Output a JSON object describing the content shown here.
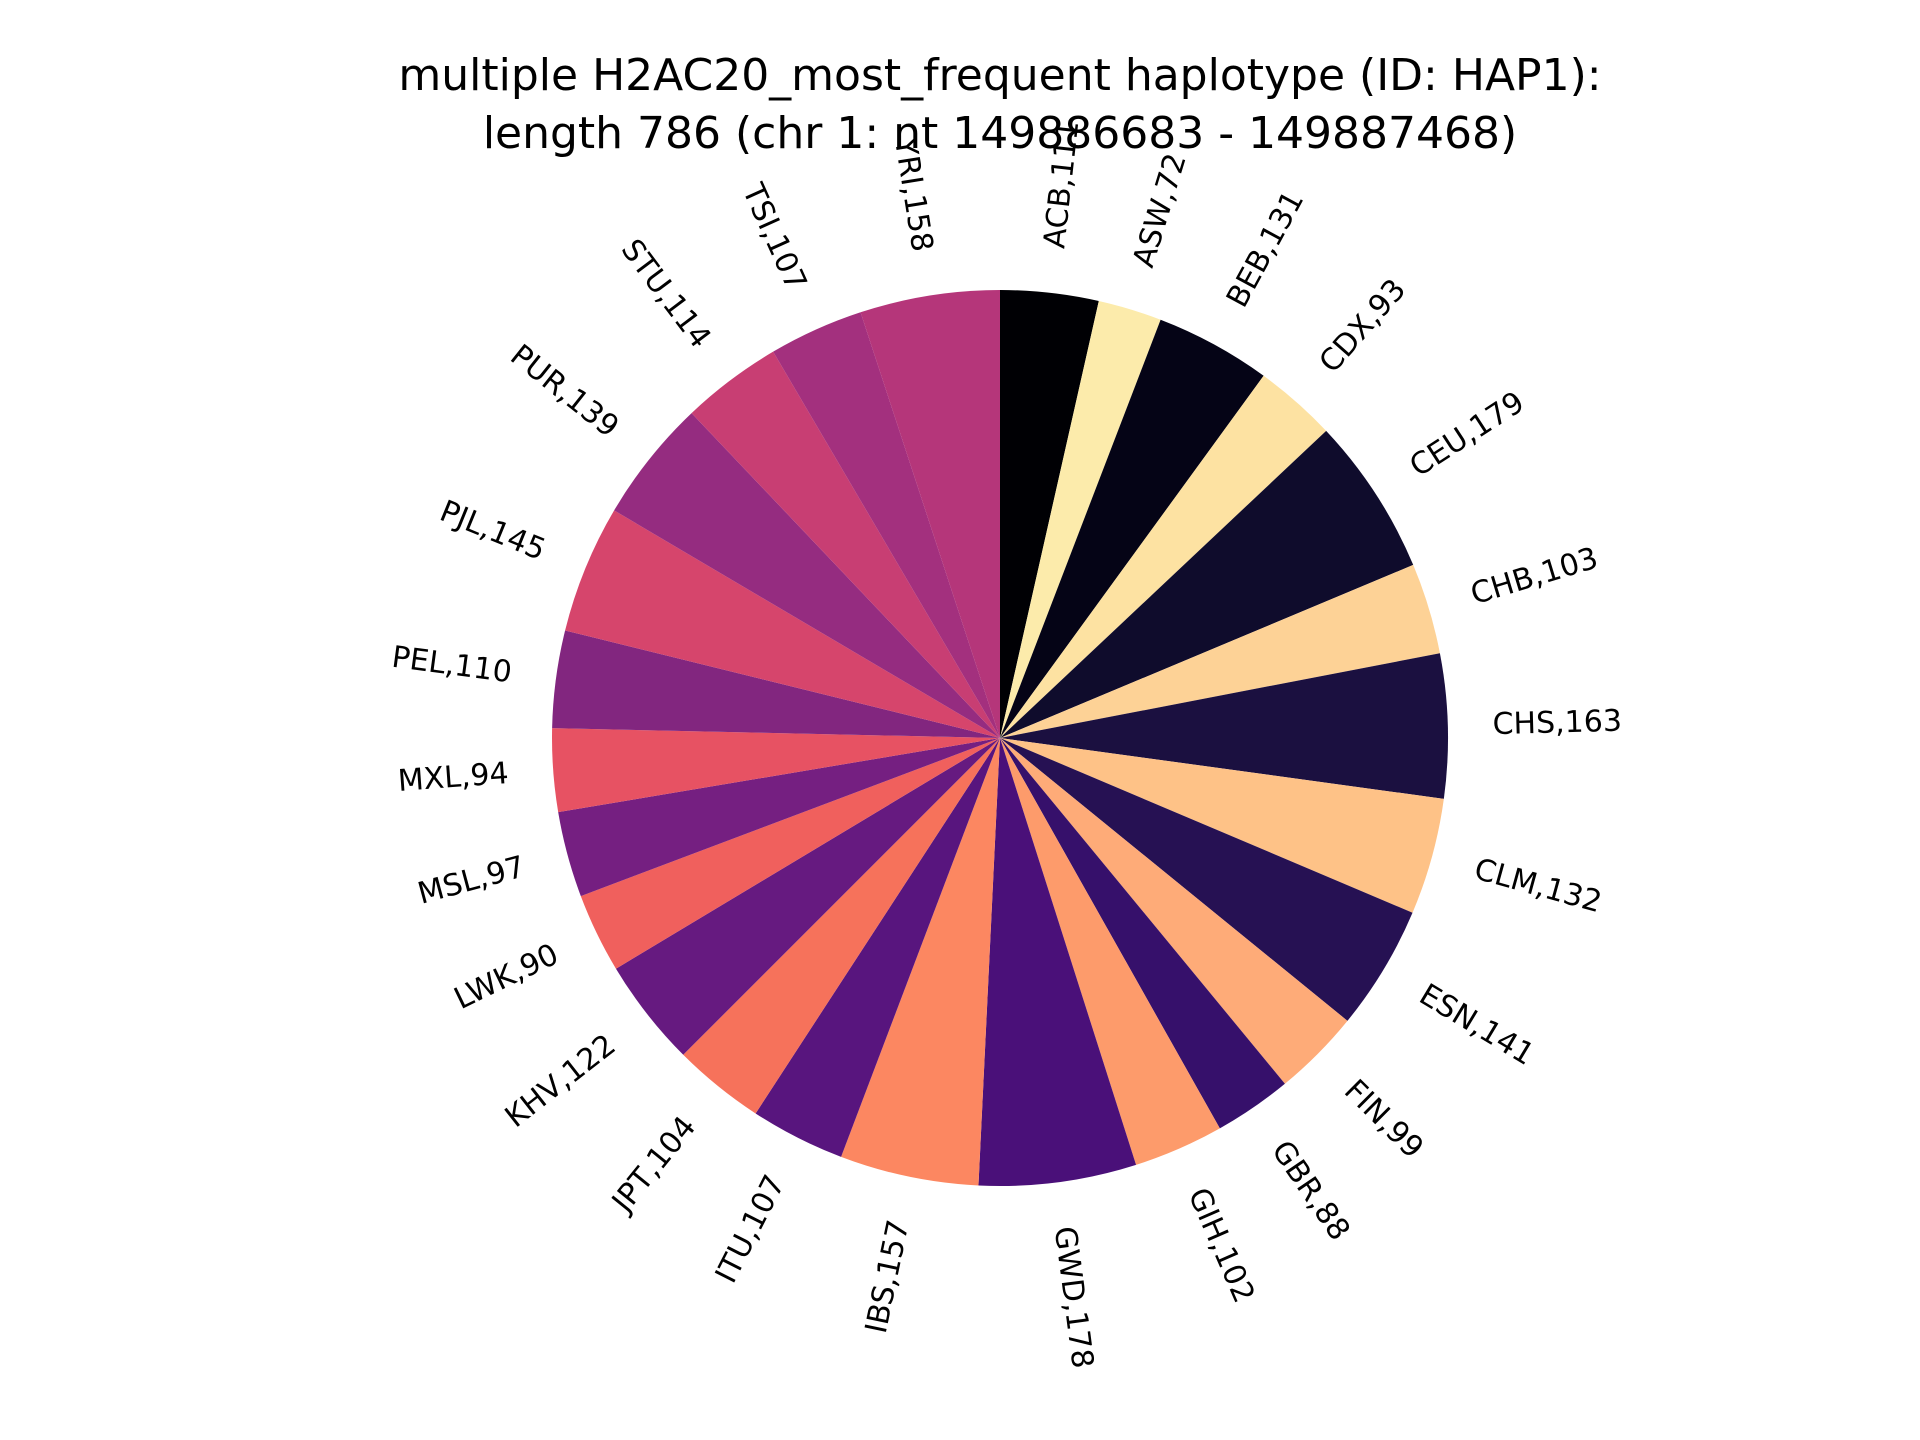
{
  "chart_data": {
    "type": "pie",
    "title_lines": [
      "multiple H2AC20_most_frequent haplotype (ID: HAP1):",
      "length 786 (chr 1: nt 149886683 - 149887468)"
    ],
    "start": "top",
    "direction": "clockwise",
    "slices": [
      {
        "label": "ACB,111",
        "value": 111,
        "color": "#000004"
      },
      {
        "label": "ASW,72",
        "value": 72,
        "color": "#fcebab"
      },
      {
        "label": "BEB,131",
        "value": 131,
        "color": "#050416"
      },
      {
        "label": "CDX,93",
        "value": 93,
        "color": "#fde2a2"
      },
      {
        "label": "CEU,179",
        "value": 179,
        "color": "#0f0c2c"
      },
      {
        "label": "CHB,103",
        "value": 103,
        "color": "#fdd296"
      },
      {
        "label": "CHS,163",
        "value": 163,
        "color": "#1b1040"
      },
      {
        "label": "CLM,132",
        "value": 132,
        "color": "#fec287"
      },
      {
        "label": "ESN,141",
        "value": 141,
        "color": "#261153"
      },
      {
        "label": "FIN,99",
        "value": 99,
        "color": "#feab78"
      },
      {
        "label": "GBR,88",
        "value": 88,
        "color": "#36106b"
      },
      {
        "label": "GIH,102",
        "value": 102,
        "color": "#fd9b6b"
      },
      {
        "label": "GWD,178",
        "value": 178,
        "color": "#4a1079"
      },
      {
        "label": "IBS,157",
        "value": 157,
        "color": "#fc8761"
      },
      {
        "label": "ITU,107",
        "value": 107,
        "color": "#58157e"
      },
      {
        "label": "JPT,104",
        "value": 104,
        "color": "#f6725b"
      },
      {
        "label": "KHV,122",
        "value": 122,
        "color": "#661a80"
      },
      {
        "label": "LWK,90",
        "value": 90,
        "color": "#f0605d"
      },
      {
        "label": "MSL,97",
        "value": 97,
        "color": "#751f81"
      },
      {
        "label": "MXL,94",
        "value": 94,
        "color": "#e75263"
      },
      {
        "label": "PEL,110",
        "value": 110,
        "color": "#82267f"
      },
      {
        "label": "PJL,145",
        "value": 145,
        "color": "#d6456c"
      },
      {
        "label": "PUR,139",
        "value": 139,
        "color": "#952c80"
      },
      {
        "label": "STU,114",
        "value": 114,
        "color": "#c83e73"
      },
      {
        "label": "TSI,107",
        "value": 107,
        "color": "#a3307e"
      },
      {
        "label": "YRI,158",
        "value": 158,
        "color": "#b5367a"
      }
    ]
  }
}
